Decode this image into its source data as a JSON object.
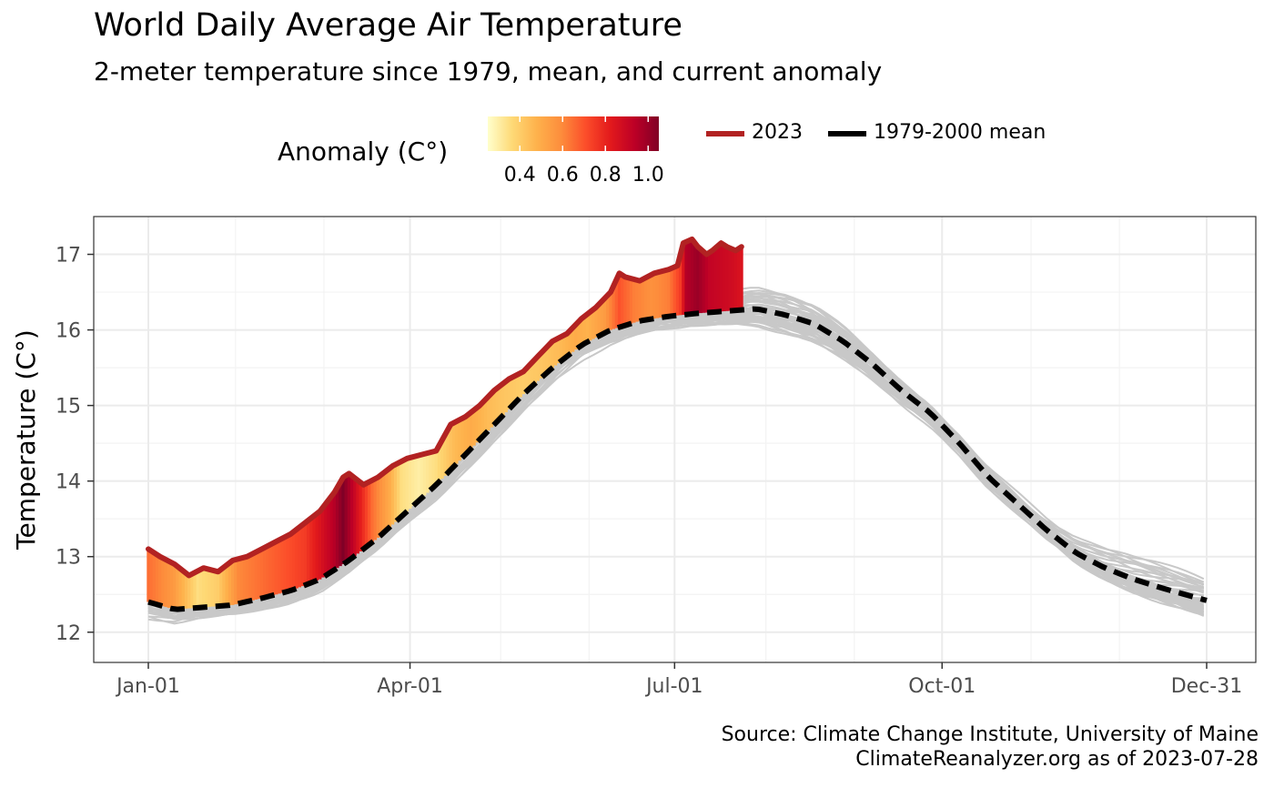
{
  "chart_data": {
    "type": "line",
    "title": "World Daily Average Air Temperature",
    "subtitle": "2-meter temperature since 1979, mean, and current anomaly",
    "xlabel": "",
    "ylabel": "Temperature (C°)",
    "x_axis": {
      "ticks": [
        "Jan-01",
        "Apr-01",
        "Jul-01",
        "Oct-01",
        "Dec-31"
      ],
      "tick_days": [
        1,
        91,
        182,
        274,
        365
      ],
      "range": [
        1,
        365
      ]
    },
    "ylim": [
      11.6,
      17.5
    ],
    "yticks": [
      12,
      13,
      14,
      15,
      16,
      17
    ],
    "grid": true,
    "legend": {
      "position": "top",
      "fill_title": "Anomaly (C°)",
      "fill_ticks": [
        0.4,
        0.6,
        0.8,
        1.0
      ],
      "fill_range": [
        0.25,
        1.05
      ],
      "fill_colors": [
        "#ffffcc",
        "#fed976",
        "#feb24c",
        "#fd8d3c",
        "#fc4e2a",
        "#e31a1c",
        "#bd0026",
        "#800026"
      ],
      "line_entries": [
        {
          "label": "2023",
          "color": "#b22222",
          "style": "solid"
        },
        {
          "label": "1979-2000 mean",
          "color": "#000000",
          "style": "dashed"
        }
      ]
    },
    "series": [
      {
        "name": "1979-2000 mean",
        "color": "#000000",
        "style": "dashed",
        "points": [
          [
            1,
            12.4
          ],
          [
            10,
            12.3
          ],
          [
            20,
            12.33
          ],
          [
            30,
            12.36
          ],
          [
            40,
            12.45
          ],
          [
            50,
            12.55
          ],
          [
            60,
            12.7
          ],
          [
            70,
            12.95
          ],
          [
            80,
            13.25
          ],
          [
            90,
            13.6
          ],
          [
            100,
            13.95
          ],
          [
            110,
            14.35
          ],
          [
            120,
            14.75
          ],
          [
            130,
            15.15
          ],
          [
            140,
            15.5
          ],
          [
            150,
            15.8
          ],
          [
            160,
            16.0
          ],
          [
            170,
            16.12
          ],
          [
            180,
            16.18
          ],
          [
            190,
            16.22
          ],
          [
            200,
            16.25
          ],
          [
            210,
            16.28
          ],
          [
            220,
            16.2
          ],
          [
            230,
            16.08
          ],
          [
            240,
            15.85
          ],
          [
            250,
            15.55
          ],
          [
            260,
            15.2
          ],
          [
            270,
            14.9
          ],
          [
            280,
            14.5
          ],
          [
            290,
            14.05
          ],
          [
            300,
            13.7
          ],
          [
            310,
            13.35
          ],
          [
            320,
            13.05
          ],
          [
            330,
            12.85
          ],
          [
            340,
            12.7
          ],
          [
            350,
            12.58
          ],
          [
            365,
            12.42
          ]
        ]
      },
      {
        "name": "2023",
        "color": "#b22222",
        "style": "solid",
        "points": [
          [
            1,
            13.1
          ],
          [
            5,
            13.0
          ],
          [
            10,
            12.9
          ],
          [
            15,
            12.75
          ],
          [
            20,
            12.85
          ],
          [
            25,
            12.8
          ],
          [
            30,
            12.95
          ],
          [
            35,
            13.0
          ],
          [
            40,
            13.1
          ],
          [
            45,
            13.2
          ],
          [
            50,
            13.3
          ],
          [
            55,
            13.45
          ],
          [
            60,
            13.6
          ],
          [
            65,
            13.85
          ],
          [
            68,
            14.05
          ],
          [
            70,
            14.1
          ],
          [
            75,
            13.95
          ],
          [
            80,
            14.05
          ],
          [
            85,
            14.2
          ],
          [
            90,
            14.3
          ],
          [
            95,
            14.35
          ],
          [
            100,
            14.4
          ],
          [
            105,
            14.75
          ],
          [
            110,
            14.85
          ],
          [
            115,
            15.0
          ],
          [
            120,
            15.2
          ],
          [
            125,
            15.35
          ],
          [
            130,
            15.45
          ],
          [
            135,
            15.65
          ],
          [
            140,
            15.85
          ],
          [
            145,
            15.95
          ],
          [
            150,
            16.15
          ],
          [
            155,
            16.3
          ],
          [
            160,
            16.5
          ],
          [
            163,
            16.75
          ],
          [
            165,
            16.7
          ],
          [
            170,
            16.65
          ],
          [
            175,
            16.75
          ],
          [
            180,
            16.8
          ],
          [
            183,
            16.85
          ],
          [
            185,
            17.15
          ],
          [
            188,
            17.2
          ],
          [
            190,
            17.1
          ],
          [
            193,
            17.0
          ],
          [
            195,
            17.05
          ],
          [
            198,
            17.15
          ],
          [
            200,
            17.1
          ],
          [
            203,
            17.05
          ],
          [
            205,
            17.1
          ]
        ]
      }
    ],
    "anomaly_points": [
      [
        1,
        0.65
      ],
      [
        10,
        0.55
      ],
      [
        18,
        0.35
      ],
      [
        25,
        0.4
      ],
      [
        32,
        0.6
      ],
      [
        40,
        0.65
      ],
      [
        48,
        0.7
      ],
      [
        55,
        0.75
      ],
      [
        60,
        0.85
      ],
      [
        65,
        0.95
      ],
      [
        68,
        1.05
      ],
      [
        72,
        0.9
      ],
      [
        78,
        0.65
      ],
      [
        84,
        0.5
      ],
      [
        88,
        0.35
      ],
      [
        94,
        0.3
      ],
      [
        100,
        0.35
      ],
      [
        106,
        0.45
      ],
      [
        112,
        0.5
      ],
      [
        118,
        0.45
      ],
      [
        124,
        0.42
      ],
      [
        130,
        0.4
      ],
      [
        136,
        0.42
      ],
      [
        142,
        0.45
      ],
      [
        148,
        0.5
      ],
      [
        152,
        0.48
      ],
      [
        158,
        0.55
      ],
      [
        163,
        0.7
      ],
      [
        168,
        0.62
      ],
      [
        174,
        0.58
      ],
      [
        180,
        0.62
      ],
      [
        184,
        0.75
      ],
      [
        186,
        0.95
      ],
      [
        190,
        1.0
      ],
      [
        194,
        0.92
      ],
      [
        198,
        0.9
      ],
      [
        202,
        0.88
      ],
      [
        205,
        0.85
      ]
    ],
    "historical_years_range": [
      0.4,
      0.9
    ]
  },
  "caption": {
    "line1": "Source: Climate Change Institute, University of Maine",
    "line2": "ClimateReanalyzer.org as of 2023-07-28"
  }
}
